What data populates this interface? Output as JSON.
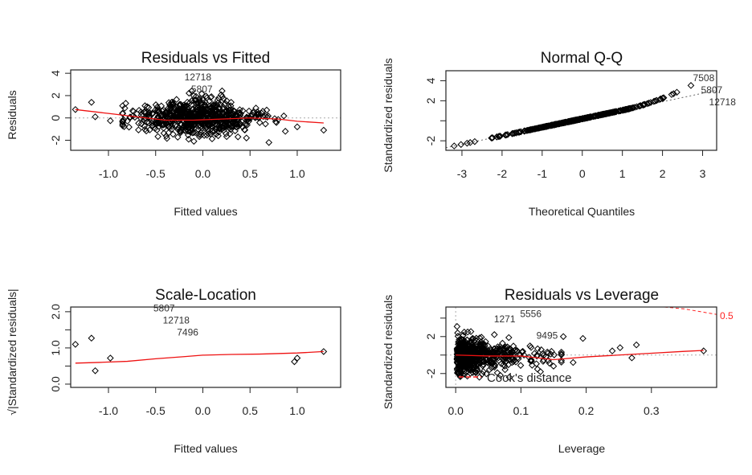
{
  "chart_data": [
    {
      "type": "scatter",
      "title": "Residuals vs Fitted",
      "xlabel": "Fitted values",
      "ylabel": "Residuals",
      "xlim": [
        -1.4,
        1.46
      ],
      "ylim": [
        -2.9,
        4.3
      ],
      "xticks": [
        {
          "v": -1.0,
          "label": "-1.0"
        },
        {
          "v": -0.5,
          "label": "-0.5"
        },
        {
          "v": 0.0,
          "label": "0.0"
        },
        {
          "v": 0.5,
          "label": "0.5"
        },
        {
          "v": 1.0,
          "label": "1.0"
        }
      ],
      "yticks": [
        {
          "v": 4,
          "label": "4"
        },
        {
          "v": 2,
          "label": "2"
        },
        {
          "v": 0,
          "label": "0"
        },
        {
          "v": -2,
          "label": "-2"
        }
      ],
      "reference_line": {
        "y": 0,
        "style": "dotted",
        "color": "#aaaaaa"
      },
      "smoother": {
        "color": "#ee1111",
        "x": [
          -1.35,
          -1.0,
          -0.7,
          -0.4,
          -0.1,
          0.2,
          0.5,
          0.8,
          1.0,
          1.28
        ],
        "y": [
          0.75,
          0.4,
          0.1,
          -0.2,
          -0.2,
          -0.1,
          0.0,
          -0.1,
          -0.3,
          -0.45
        ]
      },
      "point_cloud": {
        "n": 700,
        "x_mean": -0.08,
        "x_sd": 0.33,
        "y_sd": 0.85
      },
      "extra_points": [
        [
          -1.35,
          0.75
        ],
        [
          -1.18,
          1.4
        ],
        [
          -1.14,
          0.1
        ],
        [
          -0.98,
          -0.25
        ],
        [
          1.28,
          -1.1
        ],
        [
          0.7,
          -2.2
        ],
        [
          1.0,
          -0.8
        ]
      ],
      "labeled_points": [
        {
          "label": "12718",
          "x": -0.22,
          "y": 3.5
        },
        {
          "label": "5807",
          "x": -0.15,
          "y": 2.9
        }
      ]
    },
    {
      "type": "scatter",
      "title": "Normal Q-Q",
      "xlabel": "Theoretical Quantiles",
      "ylabel": "Standardized residuals",
      "xlim": [
        -3.4,
        3.35
      ],
      "ylim": [
        -2.95,
        5.0
      ],
      "xticks": [
        {
          "v": -3,
          "label": "-3"
        },
        {
          "v": -2,
          "label": "-2"
        },
        {
          "v": -1,
          "label": "-1"
        },
        {
          "v": 0,
          "label": "0"
        },
        {
          "v": 1,
          "label": "1"
        },
        {
          "v": 2,
          "label": "2"
        },
        {
          "v": 3,
          "label": "3"
        }
      ],
      "yticks": [
        {
          "v": 4,
          "label": "4"
        },
        {
          "v": 2,
          "label": "2"
        },
        {
          "v": 0,
          "label": ""
        },
        {
          "v": -2,
          "label": "-2"
        }
      ],
      "reference_line": {
        "slope": 0.85,
        "intercept": 0.2,
        "style": "dotted",
        "color": "#666666"
      },
      "point_cloud": {
        "n": 400
      },
      "labeled_points": [
        {
          "label": "7508",
          "x": 2.7,
          "y": 4.1
        },
        {
          "label": "5807",
          "x": 2.9,
          "y": 4.0
        },
        {
          "label": "12718",
          "x": 3.1,
          "y": 4.0
        }
      ]
    },
    {
      "type": "scatter",
      "title": "Scale-Location",
      "xlabel": "Fitted values",
      "ylabel": "√|Standardized residuals|",
      "xlim": [
        -1.4,
        1.46
      ],
      "ylim": [
        -0.09,
        2.13
      ],
      "xticks": [
        {
          "v": -1.0,
          "label": "-1.0"
        },
        {
          "v": -0.5,
          "label": "-0.5"
        },
        {
          "v": 0.0,
          "label": "0.0"
        },
        {
          "v": 0.5,
          "label": "0.5"
        },
        {
          "v": 1.0,
          "label": "1.0"
        }
      ],
      "yticks": [
        {
          "v": 0.0,
          "label": "0.0"
        },
        {
          "v": 0.5,
          "label": ""
        },
        {
          "v": 1.0,
          "label": "1.0"
        },
        {
          "v": 1.5,
          "label": ""
        },
        {
          "v": 2.0,
          "label": "2.0"
        }
      ],
      "smoother": {
        "color": "#ee1111",
        "x": [
          -1.35,
          -1.1,
          -0.8,
          -0.5,
          -0.2,
          0.0,
          0.3,
          0.6,
          1.0,
          1.28
        ],
        "y": [
          0.58,
          0.6,
          0.63,
          0.7,
          0.76,
          0.8,
          0.82,
          0.83,
          0.86,
          0.9
        ]
      },
      "point_cloud": {
        "n": 700,
        "x_mean": -0.08,
        "x_sd": 0.33
      },
      "extra_points": [
        [
          -1.35,
          1.1
        ],
        [
          -1.18,
          1.27
        ],
        [
          -1.14,
          0.37
        ],
        [
          -0.98,
          0.72
        ],
        [
          1.28,
          0.9
        ],
        [
          1.0,
          0.72
        ],
        [
          0.97,
          0.62
        ]
      ],
      "labeled_points": [
        {
          "label": "5807",
          "x": -0.55,
          "y": 2.05
        },
        {
          "label": "12718",
          "x": -0.45,
          "y": 2.05
        },
        {
          "label": "7496",
          "x": -0.3,
          "y": 2.0
        }
      ]
    },
    {
      "type": "scatter",
      "title": "Residuals vs Leverage",
      "xlabel": "Leverage",
      "ylabel": "Standardized residuals",
      "xlim": [
        -0.015,
        0.4
      ],
      "ylim": [
        -3.5,
        5.2
      ],
      "xticks": [
        {
          "v": 0.0,
          "label": "0.0"
        },
        {
          "v": 0.1,
          "label": "0.1"
        },
        {
          "v": 0.2,
          "label": "0.2"
        },
        {
          "v": 0.3,
          "label": "0.3"
        }
      ],
      "yticks": [
        {
          "v": 4,
          "label": ""
        },
        {
          "v": 2,
          "label": "2"
        },
        {
          "v": 0,
          "label": ""
        },
        {
          "v": -2,
          "label": "-2"
        }
      ],
      "reference_line": {
        "y": 0,
        "style": "dotted",
        "color": "#aaaaaa"
      },
      "smoother": {
        "color": "#ee1111",
        "x": [
          0.0,
          0.05,
          0.1,
          0.15,
          0.2,
          0.25,
          0.3,
          0.35,
          0.38
        ],
        "y": [
          0.0,
          -0.1,
          -0.1,
          -0.5,
          -0.2,
          0.0,
          0.2,
          0.4,
          0.5
        ]
      },
      "cooks_distance": {
        "label": "Cook's distance",
        "level_label": "0.5",
        "color": "#ff2222",
        "x": [
          0.32,
          0.35,
          0.4
        ],
        "y": [
          5.2,
          5.0,
          4.4
        ]
      },
      "point_cloud": {
        "n": 600,
        "lev_mean": 0.035
      },
      "extra_points": [
        [
          0.165,
          2.0
        ],
        [
          0.195,
          1.8
        ],
        [
          0.24,
          0.45
        ],
        [
          0.252,
          0.8
        ],
        [
          0.27,
          -0.3
        ],
        [
          0.277,
          1.1
        ],
        [
          0.38,
          0.45
        ],
        [
          0.18,
          -0.8
        ],
        [
          0.15,
          -1.2
        ],
        [
          0.13,
          -1.8
        ]
      ],
      "labeled_points": [
        {
          "label": "5556",
          "x": 0.095,
          "y": 4.3
        },
        {
          "label": "1271",
          "x": 0.055,
          "y": 3.7
        },
        {
          "label": "9495",
          "x": 0.12,
          "y": 1.95
        }
      ]
    }
  ]
}
